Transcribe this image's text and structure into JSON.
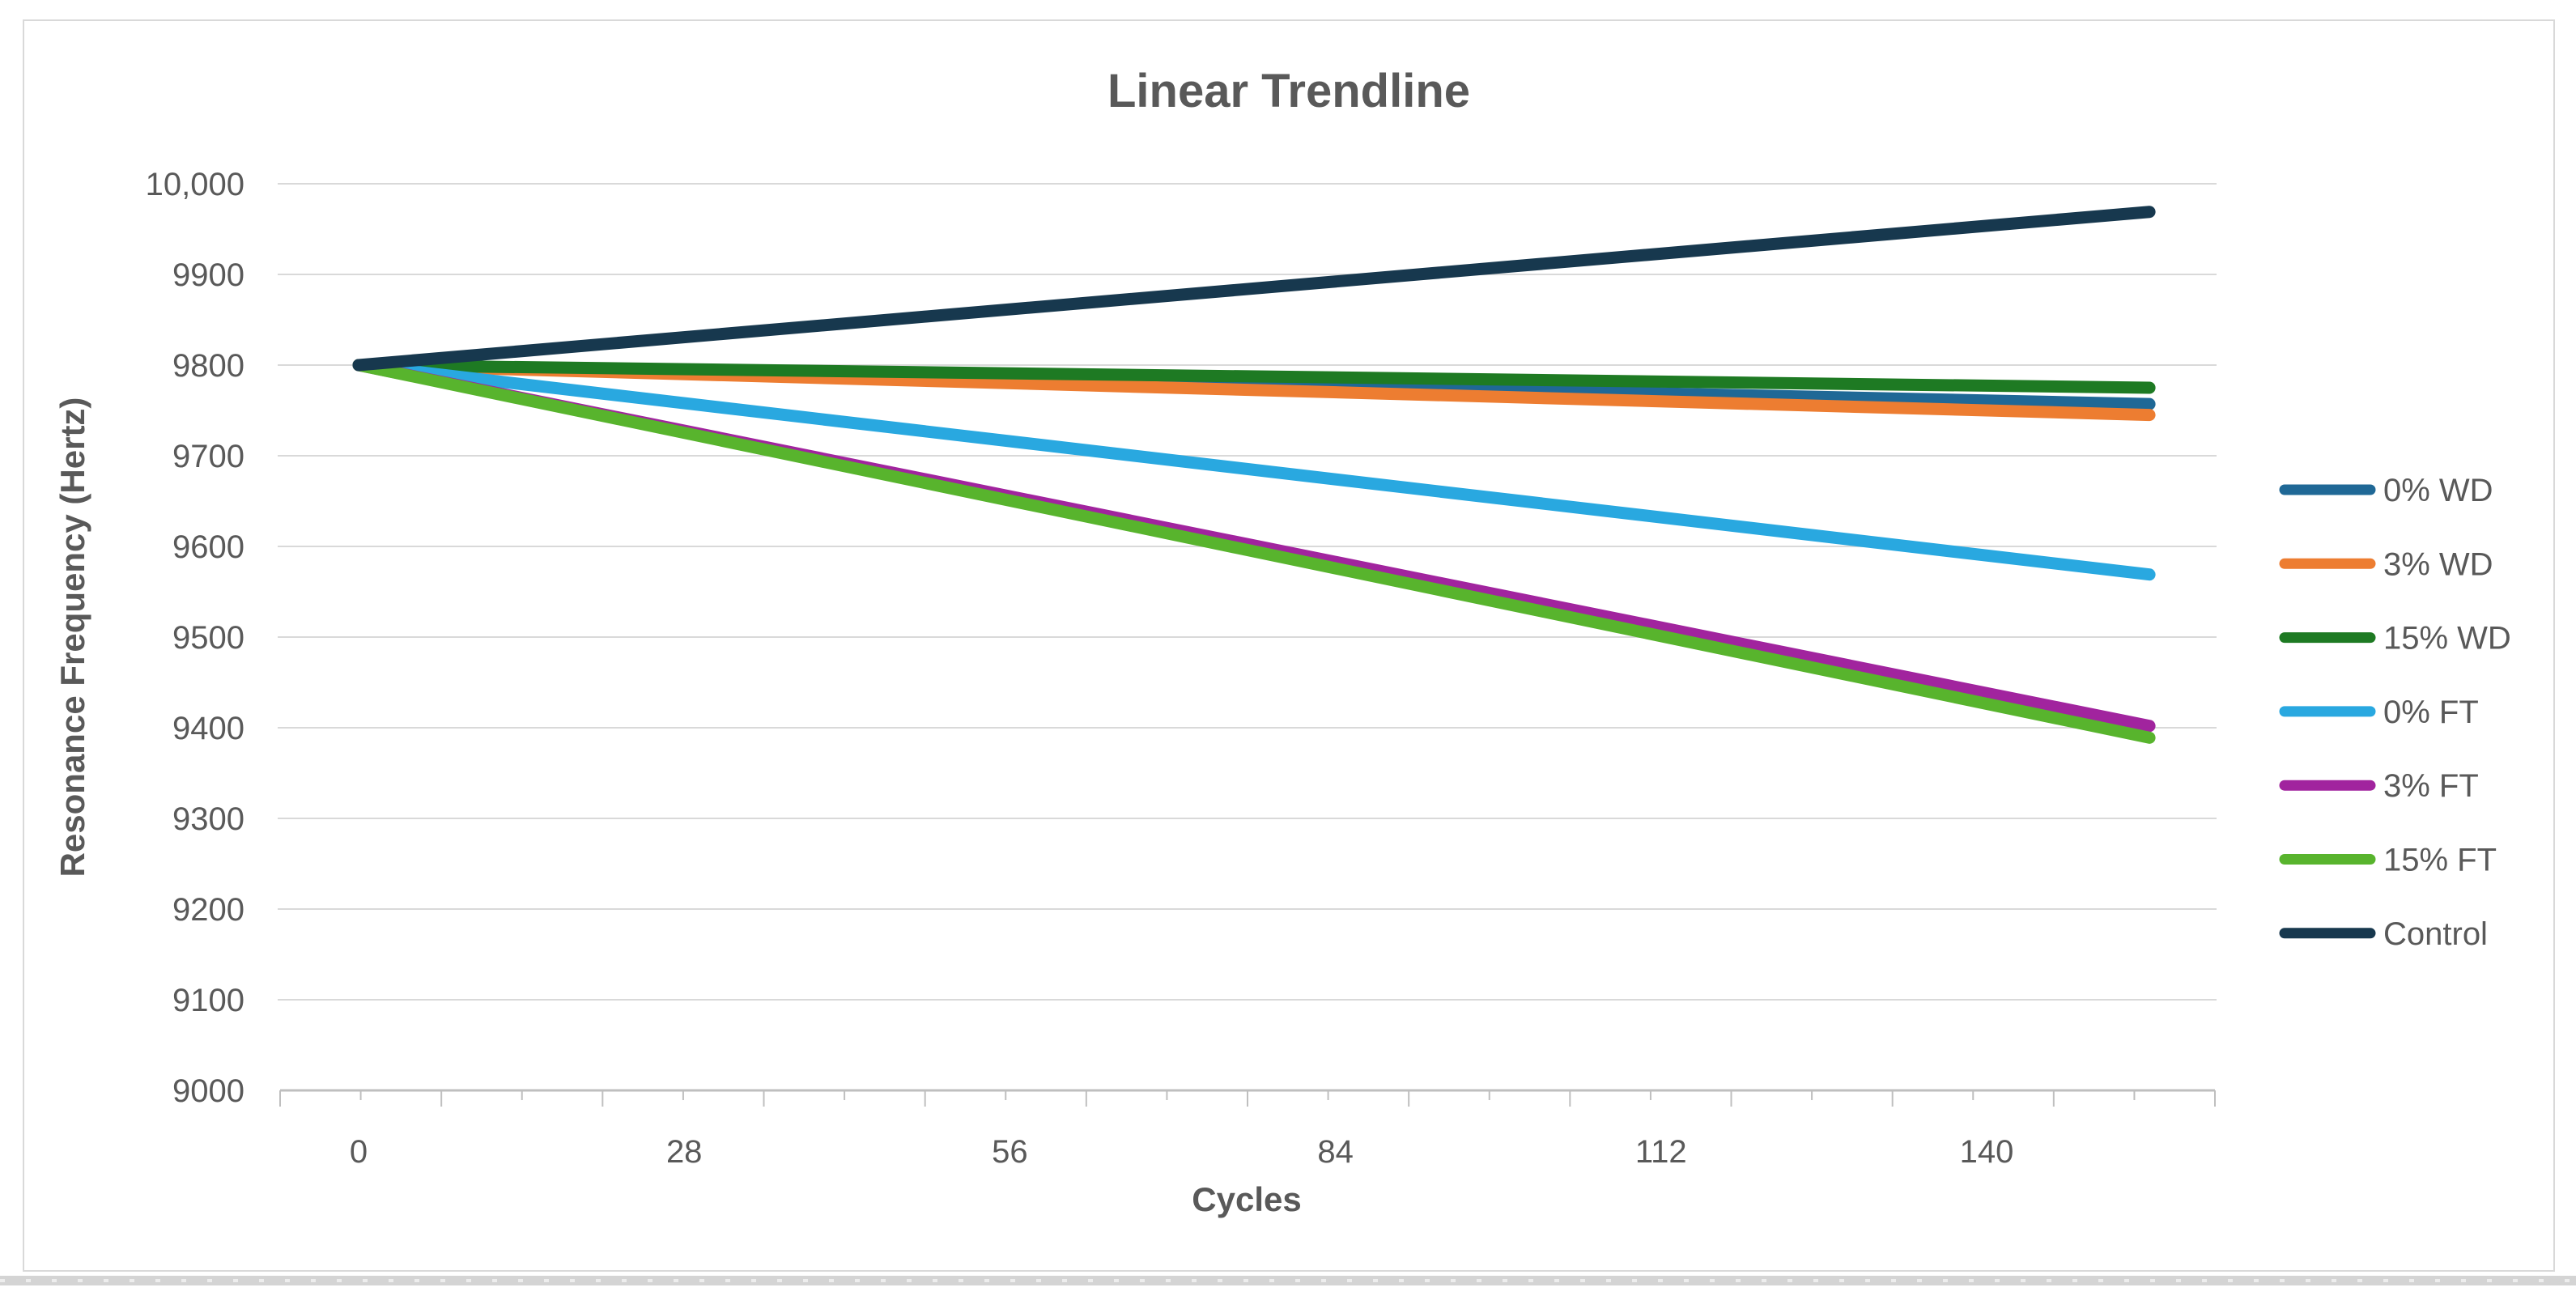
{
  "chart_data": {
    "type": "line",
    "title": "Linear Trendline",
    "xlabel": "Cycles",
    "ylabel": "Resonance Frequency (Hertz)",
    "xlim": [
      0,
      154
    ],
    "ylim": [
      9000,
      10000
    ],
    "x_ticks": [
      0,
      28,
      56,
      84,
      112,
      140
    ],
    "y_tick_values": [
      9000,
      9100,
      9200,
      9300,
      9400,
      9500,
      9600,
      9700,
      9800,
      9900,
      10000
    ],
    "y_tick_labels": [
      "9000",
      "9100",
      "9200",
      "9300",
      "9400",
      "9500",
      "9600",
      "9700",
      "9800",
      "9900",
      "10,000"
    ],
    "grid": "horizontal-major",
    "legend_position": "right",
    "series": [
      {
        "name": "0% WD",
        "color": "#1F6896",
        "x": [
          0,
          154
        ],
        "y": [
          9800,
          9757
        ]
      },
      {
        "name": "3% WD",
        "color": "#ED7D31",
        "x": [
          0,
          154
        ],
        "y": [
          9800,
          9745
        ]
      },
      {
        "name": "15% WD",
        "color": "#1E7A23",
        "x": [
          0,
          154
        ],
        "y": [
          9800,
          9775
        ]
      },
      {
        "name": "0% FT",
        "color": "#29A8E0",
        "x": [
          0,
          154
        ],
        "y": [
          9800,
          9569
        ]
      },
      {
        "name": "3% FT",
        "color": "#A1249E",
        "x": [
          0,
          154
        ],
        "y": [
          9800,
          9402
        ]
      },
      {
        "name": "15% FT",
        "color": "#58B42D",
        "x": [
          0,
          154
        ],
        "y": [
          9800,
          9389
        ]
      },
      {
        "name": "Control",
        "color": "#17384E",
        "x": [
          0,
          154
        ],
        "y": [
          9800,
          9969
        ]
      }
    ],
    "colors": {
      "gridline": "#D9D9D9",
      "axis_line": "#BFBFBF",
      "tick_mark": "#BFBFBF",
      "text": "#595959",
      "chart_border": "#D9D9D9",
      "bottom_edge_band": "#D4D4D4",
      "background": "#FFFFFF"
    }
  }
}
